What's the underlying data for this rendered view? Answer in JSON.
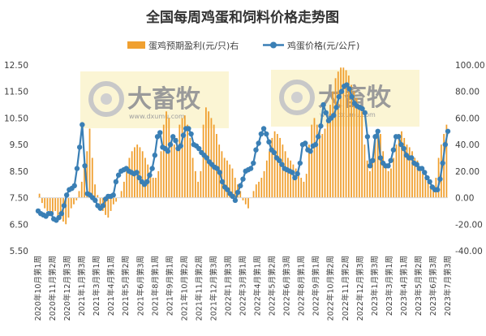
{
  "chart_data": {
    "type": "bar+line",
    "title": "全国每周鸡蛋和饲料价格走势图",
    "legend_position": "top-center",
    "grid": false,
    "series": [
      {
        "name": "蛋鸡预期盈利(元/只)右",
        "type": "bar",
        "axis": "right",
        "color": "#f0a030",
        "values": [
          3,
          -4,
          -8,
          -10,
          -13,
          -12,
          -10,
          -15,
          -16,
          -18,
          -20,
          -15,
          -8,
          -5,
          -2,
          5,
          12,
          25,
          35,
          52,
          30,
          10,
          2,
          -5,
          -10,
          -13,
          -15,
          -10,
          -5,
          -3,
          0,
          5,
          12,
          20,
          30,
          35,
          38,
          40,
          38,
          35,
          30,
          25,
          20,
          15,
          15,
          20,
          35,
          55,
          65,
          60,
          45,
          40,
          45,
          55,
          60,
          62,
          55,
          45,
          30,
          20,
          12,
          20,
          55,
          68,
          65,
          60,
          55,
          48,
          40,
          35,
          30,
          28,
          25,
          22,
          15,
          10,
          5,
          -2,
          -5,
          -8,
          0,
          5,
          10,
          12,
          15,
          20,
          28,
          35,
          45,
          50,
          48,
          45,
          40,
          35,
          30,
          28,
          25,
          22,
          20,
          15,
          12,
          18,
          40,
          55,
          60,
          55,
          50,
          48,
          52,
          60,
          70,
          80,
          90,
          95,
          98,
          98,
          96,
          92,
          85,
          80,
          75,
          70,
          65,
          40,
          28,
          20,
          30,
          45,
          50,
          48,
          35,
          25,
          20,
          22,
          30,
          40,
          48,
          50,
          45,
          40,
          38,
          35,
          30,
          28,
          22,
          18,
          15,
          12,
          8,
          5,
          15,
          30,
          40,
          48,
          55
        ]
      },
      {
        "name": "鸡蛋价格(元/公斤)",
        "type": "line",
        "axis": "left",
        "color": "#3a7fb5",
        "values": [
          7.0,
          6.9,
          6.85,
          6.8,
          6.9,
          6.9,
          6.7,
          6.65,
          6.75,
          6.9,
          7.2,
          7.6,
          7.8,
          7.85,
          7.95,
          8.6,
          9.4,
          10.25,
          8.7,
          7.65,
          7.6,
          7.5,
          7.4,
          7.2,
          7.1,
          7.2,
          7.45,
          7.55,
          7.55,
          7.6,
          8.1,
          8.35,
          8.5,
          8.55,
          8.6,
          8.5,
          8.45,
          8.4,
          8.45,
          8.25,
          8.1,
          8.0,
          8.1,
          8.35,
          8.6,
          9.1,
          9.8,
          9.95,
          9.4,
          9.35,
          9.25,
          9.5,
          9.8,
          9.65,
          9.35,
          9.45,
          9.85,
          10.1,
          10.1,
          9.9,
          9.5,
          9.45,
          9.35,
          9.2,
          9.1,
          9.0,
          8.85,
          8.75,
          8.65,
          8.6,
          8.45,
          8.1,
          7.9,
          7.8,
          7.65,
          7.55,
          7.4,
          7.7,
          7.95,
          8.2,
          8.5,
          8.55,
          8.6,
          8.8,
          9.3,
          9.55,
          9.9,
          10.1,
          9.9,
          9.6,
          9.3,
          9.2,
          9.0,
          8.9,
          8.75,
          8.6,
          8.55,
          8.5,
          8.45,
          8.25,
          8.4,
          8.8,
          9.5,
          9.55,
          9.3,
          9.25,
          9.45,
          9.5,
          9.8,
          10.2,
          11.0,
          10.7,
          10.4,
          10.5,
          10.6,
          10.9,
          11.3,
          11.5,
          11.7,
          11.75,
          11.6,
          11.3,
          11.05,
          10.95,
          10.9,
          10.85,
          10.7,
          9.8,
          8.7,
          8.9,
          9.8,
          10.0,
          9.0,
          8.8,
          8.7,
          8.7,
          8.9,
          9.3,
          9.8,
          9.8,
          9.5,
          9.35,
          9.1,
          9.0,
          9.0,
          8.8,
          8.75,
          8.6,
          8.6,
          8.45,
          8.25,
          8.1,
          7.9,
          7.8,
          7.8,
          8.2,
          8.8,
          9.5,
          10.0
        ]
      }
    ],
    "y_left": {
      "min": 5.5,
      "max": 12.5,
      "ticks": [
        "12.50",
        "11.50",
        "10.50",
        "9.50",
        "8.50",
        "7.50",
        "6.50",
        "5.50"
      ],
      "tick_values": [
        12.5,
        11.5,
        10.5,
        9.5,
        8.5,
        7.5,
        6.5,
        5.5
      ]
    },
    "y_right": {
      "min": -40,
      "max": 100,
      "ticks": [
        "100.00",
        "80.00",
        "60.00",
        "40.00",
        "20.00",
        "0.00",
        "-20.00",
        "-40.00"
      ],
      "tick_values": [
        100,
        80,
        60,
        40,
        20,
        0,
        -20,
        -40
      ]
    },
    "x_labels": [
      "2020年10月第1周",
      "2020年11月第2周",
      "2020年12月第3周",
      "2021年1月第3周",
      "2021年3月第1周",
      "2021年4月第1周",
      "2021年5月第2周",
      "2021年6月第3周",
      "2021年8月第1周",
      "2021年9月第1周",
      "2021年10月第2周",
      "2021年11月第2周",
      "2021年12月第3周",
      "2022年1月第3周",
      "2022年3月第1周",
      "2022年4月第1周",
      "2022年5月第2周",
      "2022年6月第3周",
      "2022年8月第1周",
      "2022年9月第1周",
      "2022年10月第2周",
      "2022年11月第2周",
      "2022年12月第3周",
      "2023年1月第3周",
      "2023年3月第1周",
      "2023年4月第1周",
      "2023年5月第2周",
      "2023年6月第3周",
      "2023年7月第3周"
    ]
  },
  "watermark": {
    "brand": "大畜牧",
    "domain": "www.dxumu.com"
  }
}
